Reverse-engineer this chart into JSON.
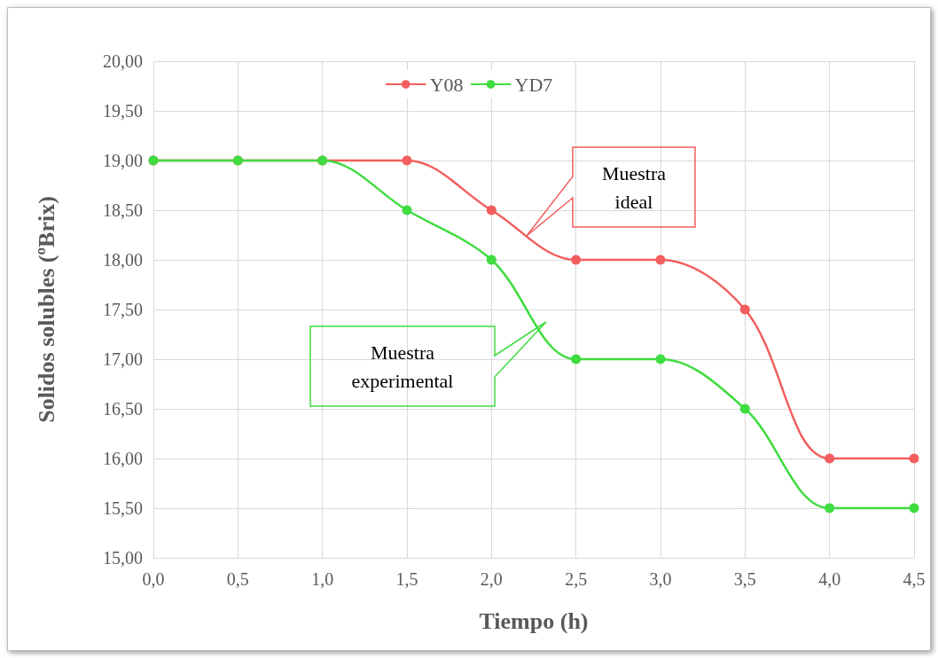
{
  "chart_data": {
    "type": "line",
    "xlabel": "Tiempo (h)",
    "ylabel": "Solidos solubles (ºBrix)",
    "x": [
      0,
      0.5,
      1,
      1.5,
      2,
      2.5,
      3,
      3.5,
      4,
      4.5
    ],
    "series": [
      {
        "name": "Y08",
        "color": "#f25e5e",
        "values": [
          19,
          19,
          19,
          19,
          18.5,
          18,
          18,
          17.5,
          16,
          16
        ]
      },
      {
        "name": "YD7",
        "color": "#3fdc3f",
        "values": [
          19,
          19,
          19,
          18.5,
          18,
          17,
          17,
          16.5,
          15.5,
          15.5
        ]
      }
    ],
    "xlim": [
      0,
      4.5
    ],
    "xticks": [
      {
        "value": 0,
        "label": "0,0"
      },
      {
        "value": 0.5,
        "label": "0,5"
      },
      {
        "value": 1,
        "label": "1,0"
      },
      {
        "value": 1.5,
        "label": "1,5"
      },
      {
        "value": 2,
        "label": "2,0"
      },
      {
        "value": 2.5,
        "label": "2,5"
      },
      {
        "value": 3,
        "label": "3,0"
      },
      {
        "value": 3.5,
        "label": "3,5"
      },
      {
        "value": 4,
        "label": "4,0"
      },
      {
        "value": 4.5,
        "label": "4,5"
      }
    ],
    "ylim": [
      15,
      20
    ],
    "yticks": [
      {
        "value": 15,
        "label": "15,00"
      },
      {
        "value": 15.5,
        "label": "15,50"
      },
      {
        "value": 16,
        "label": "16,00"
      },
      {
        "value": 16.5,
        "label": "16,50"
      },
      {
        "value": 17,
        "label": "17,00"
      },
      {
        "value": 17.5,
        "label": "17,50"
      },
      {
        "value": 18,
        "label": "18,00"
      },
      {
        "value": 18.5,
        "label": "18,50"
      },
      {
        "value": 19,
        "label": "19,00"
      },
      {
        "value": 19.5,
        "label": "19,50"
      },
      {
        "value": 20,
        "label": "20,00"
      }
    ],
    "annotations": [
      "Muestra\nideal",
      "Muestra\nexperimental"
    ],
    "grid": true,
    "legend": "top",
    "marker": "circle",
    "line_style": "solid"
  }
}
